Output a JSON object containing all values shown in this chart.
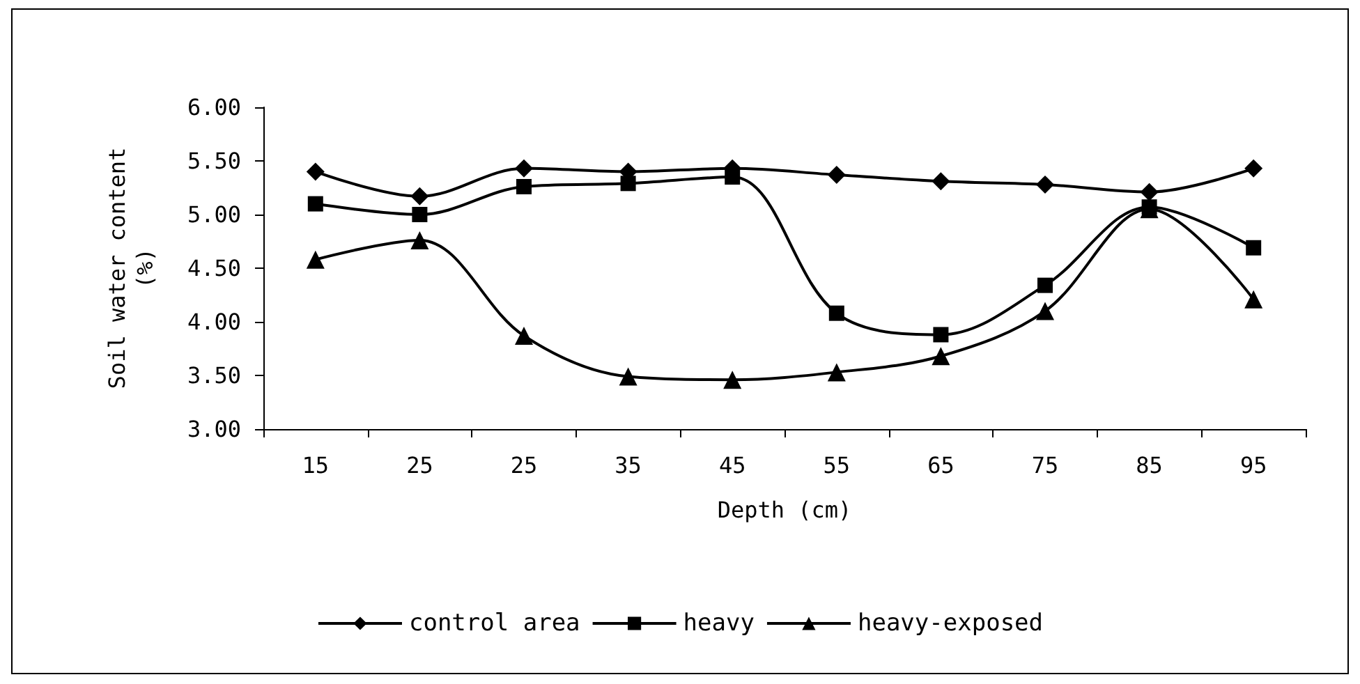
{
  "chart_data": {
    "type": "line",
    "xlabel": "Depth (cm)",
    "ylabel": "Soil water content (%)",
    "categories": [
      "15",
      "25",
      "25",
      "35",
      "45",
      "55",
      "65",
      "75",
      "85",
      "95"
    ],
    "series": [
      {
        "name": "control area",
        "color": "#000000",
        "marker": "diamond",
        "values": [
          5.4,
          5.17,
          5.43,
          5.4,
          5.43,
          5.37,
          5.31,
          5.28,
          5.21,
          5.43
        ]
      },
      {
        "name": "heavy",
        "color": "#000000",
        "marker": "square",
        "values": [
          5.1,
          5.0,
          5.26,
          5.29,
          5.35,
          4.08,
          3.88,
          4.34,
          5.07,
          4.69
        ]
      },
      {
        "name": "heavy-exposed",
        "color": "#000000",
        "marker": "triangle",
        "values": [
          4.58,
          4.76,
          3.87,
          3.49,
          3.46,
          3.53,
          3.68,
          4.1,
          5.05,
          4.21
        ]
      }
    ],
    "ylim": [
      3,
      6
    ],
    "yticks": [
      {
        "value": 3,
        "label": "3.00"
      },
      {
        "value": 3.5,
        "label": "3.50"
      },
      {
        "value": 4,
        "label": "4.00"
      },
      {
        "value": 4.5,
        "label": "4.50"
      },
      {
        "value": 5,
        "label": "5.00"
      },
      {
        "value": 5.5,
        "label": "5.50"
      },
      {
        "value": 6,
        "label": "6.00"
      }
    ],
    "grid": false,
    "legend": "bottom",
    "line_style": "solid"
  }
}
